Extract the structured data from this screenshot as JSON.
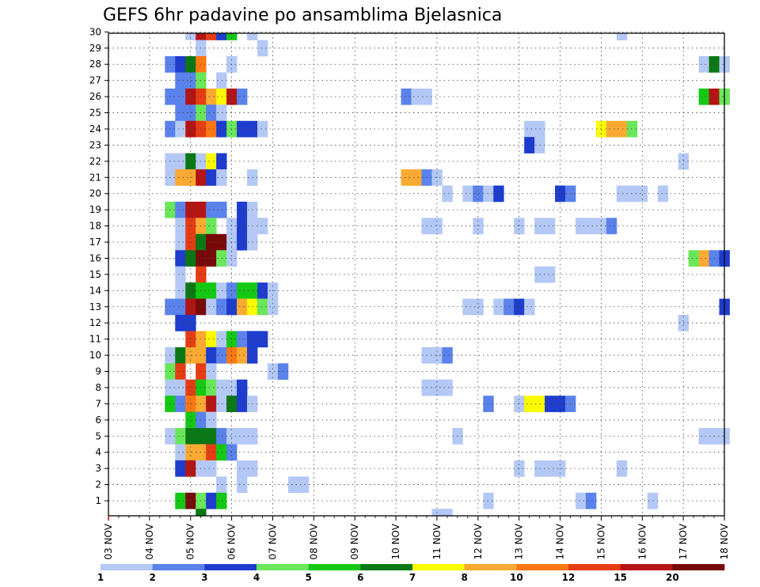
{
  "chart_data": {
    "type": "heatmap",
    "title": "GEFS 6hr padavine po ansamblima Bjelasnica",
    "xlabel": "",
    "ylabel": "",
    "x_labels": [
      "03 NOV",
      "04 NOV",
      "05 NOV",
      "06 NOV",
      "07 NOV",
      "08 NOV",
      "09 NOV",
      "10 NOV",
      "11 NOV",
      "12 NOV",
      "13 NOV",
      "14 NOV",
      "15 NOV",
      "16 NOV",
      "17 NOV",
      "18 NOV"
    ],
    "xlim": [
      0,
      60
    ],
    "y_labels": [
      "1",
      "2",
      "3",
      "4",
      "5",
      "6",
      "7",
      "8",
      "9",
      "10",
      "11",
      "12",
      "13",
      "14",
      "15",
      "16",
      "17",
      "18",
      "19",
      "20",
      "21",
      "22",
      "23",
      "24",
      "25",
      "26",
      "27",
      "28",
      "29",
      "30"
    ],
    "ylim": [
      0,
      30
    ],
    "grid": true,
    "x_unit": "6-hour step from 03 NOV 00Z",
    "color_levels": [
      1,
      2,
      3,
      4,
      5,
      6,
      7,
      8,
      10,
      12,
      15,
      20
    ],
    "colorbar_labels": [
      "1",
      "2",
      "3",
      "4",
      "5",
      "6",
      "7",
      "8",
      "10",
      "12",
      "15",
      "20"
    ],
    "colors": [
      "#b4c8f5",
      "#5a82eb",
      "#1e3ccd",
      "#6ae65a",
      "#14c814",
      "#0a7814",
      "#fafa00",
      "#faaa32",
      "#fa7814",
      "#e63c14",
      "#b41414",
      "#780a0a"
    ],
    "cells": [
      {
        "member": 30,
        "t": [
          [
            8,
            1
          ],
          [
            9,
            11
          ],
          [
            10,
            10
          ],
          [
            11,
            3
          ],
          [
            12,
            5
          ],
          [
            14,
            1
          ],
          [
            50,
            1
          ]
        ]
      },
      {
        "member": 29,
        "t": [
          [
            9,
            1
          ],
          [
            15,
            1
          ]
        ]
      },
      {
        "member": 28,
        "t": [
          [
            6,
            2
          ],
          [
            7,
            3
          ],
          [
            8,
            6
          ],
          [
            9,
            9
          ],
          [
            12,
            1
          ],
          [
            58,
            1
          ],
          [
            59,
            6
          ],
          [
            60,
            1
          ]
        ]
      },
      {
        "member": 27,
        "t": [
          [
            7,
            2
          ],
          [
            8,
            2
          ],
          [
            9,
            4
          ],
          [
            11,
            1
          ]
        ]
      },
      {
        "member": 26,
        "t": [
          [
            6,
            2
          ],
          [
            7,
            2
          ],
          [
            8,
            11
          ],
          [
            9,
            10
          ],
          [
            10,
            8
          ],
          [
            11,
            7
          ],
          [
            12,
            11
          ],
          [
            13,
            2
          ],
          [
            29,
            2
          ],
          [
            30,
            1
          ],
          [
            31,
            1
          ],
          [
            58,
            5
          ],
          [
            59,
            11
          ],
          [
            60,
            4
          ]
        ]
      },
      {
        "member": 25,
        "t": [
          [
            7,
            2
          ],
          [
            8,
            2
          ],
          [
            9,
            4
          ],
          [
            10,
            2
          ],
          [
            11,
            1
          ]
        ]
      },
      {
        "member": 24,
        "t": [
          [
            6,
            2
          ],
          [
            7,
            1
          ],
          [
            8,
            11
          ],
          [
            9,
            10
          ],
          [
            10,
            9
          ],
          [
            11,
            3
          ],
          [
            12,
            4
          ],
          [
            13,
            3
          ],
          [
            14,
            3
          ],
          [
            15,
            1
          ],
          [
            41,
            1
          ],
          [
            42,
            1
          ],
          [
            48,
            7
          ],
          [
            49,
            8
          ],
          [
            50,
            8
          ],
          [
            51,
            4
          ]
        ]
      },
      {
        "member": 23,
        "t": [
          [
            41,
            3
          ],
          [
            42,
            1
          ]
        ]
      },
      {
        "member": 22,
        "t": [
          [
            6,
            1
          ],
          [
            7,
            1
          ],
          [
            8,
            6
          ],
          [
            9,
            1
          ],
          [
            10,
            7
          ],
          [
            11,
            3
          ],
          [
            56,
            1
          ]
        ]
      },
      {
        "member": 21,
        "t": [
          [
            6,
            1
          ],
          [
            7,
            8
          ],
          [
            8,
            8
          ],
          [
            9,
            11
          ],
          [
            10,
            3
          ],
          [
            11,
            1
          ],
          [
            14,
            1
          ],
          [
            29,
            8
          ],
          [
            30,
            8
          ],
          [
            31,
            2
          ],
          [
            32,
            1
          ]
        ]
      },
      {
        "member": 20,
        "t": [
          [
            33,
            1
          ],
          [
            35,
            1
          ],
          [
            36,
            2
          ],
          [
            37,
            1
          ],
          [
            38,
            3
          ],
          [
            44,
            3
          ],
          [
            45,
            2
          ],
          [
            50,
            1
          ],
          [
            51,
            1
          ],
          [
            52,
            1
          ],
          [
            54,
            1
          ]
        ]
      },
      {
        "member": 19,
        "t": [
          [
            6,
            4
          ],
          [
            7,
            2
          ],
          [
            8,
            11
          ],
          [
            9,
            11
          ],
          [
            10,
            2
          ],
          [
            11,
            2
          ],
          [
            13,
            3
          ],
          [
            14,
            1
          ]
        ]
      },
      {
        "member": 18,
        "t": [
          [
            7,
            1
          ],
          [
            8,
            10
          ],
          [
            9,
            8
          ],
          [
            10,
            4
          ],
          [
            12,
            1
          ],
          [
            13,
            3
          ],
          [
            14,
            1
          ],
          [
            15,
            1
          ],
          [
            31,
            1
          ],
          [
            32,
            1
          ],
          [
            36,
            1
          ],
          [
            40,
            1
          ],
          [
            42,
            1
          ],
          [
            43,
            1
          ],
          [
            46,
            1
          ],
          [
            47,
            1
          ],
          [
            48,
            1
          ],
          [
            49,
            2
          ]
        ]
      },
      {
        "member": 17,
        "t": [
          [
            7,
            1
          ],
          [
            8,
            10
          ],
          [
            9,
            6
          ],
          [
            10,
            12
          ],
          [
            11,
            12
          ],
          [
            12,
            1
          ],
          [
            13,
            3
          ],
          [
            14,
            1
          ]
        ]
      },
      {
        "member": 16,
        "t": [
          [
            7,
            3
          ],
          [
            8,
            6
          ],
          [
            9,
            12
          ],
          [
            10,
            12
          ],
          [
            11,
            4
          ],
          [
            12,
            1
          ],
          [
            57,
            4
          ],
          [
            58,
            8
          ],
          [
            59,
            2
          ],
          [
            60,
            3
          ]
        ]
      },
      {
        "member": 15,
        "t": [
          [
            7,
            1
          ],
          [
            9,
            10
          ],
          [
            42,
            1
          ],
          [
            43,
            1
          ]
        ]
      },
      {
        "member": 14,
        "t": [
          [
            7,
            1
          ],
          [
            8,
            6
          ],
          [
            9,
            5
          ],
          [
            10,
            5
          ],
          [
            11,
            1
          ],
          [
            12,
            2
          ],
          [
            13,
            5
          ],
          [
            14,
            5
          ],
          [
            15,
            3
          ],
          [
            16,
            1
          ]
        ]
      },
      {
        "member": 13,
        "t": [
          [
            6,
            2
          ],
          [
            7,
            2
          ],
          [
            8,
            11
          ],
          [
            9,
            12
          ],
          [
            10,
            1
          ],
          [
            11,
            2
          ],
          [
            12,
            3
          ],
          [
            13,
            8
          ],
          [
            14,
            7
          ],
          [
            15,
            4
          ],
          [
            16,
            1
          ],
          [
            35,
            1
          ],
          [
            36,
            1
          ],
          [
            38,
            1
          ],
          [
            39,
            2
          ],
          [
            40,
            3
          ],
          [
            41,
            1
          ],
          [
            60,
            3
          ]
        ]
      },
      {
        "member": 12,
        "t": [
          [
            7,
            3
          ],
          [
            8,
            3
          ],
          [
            56,
            1
          ]
        ]
      },
      {
        "member": 11,
        "t": [
          [
            8,
            10
          ],
          [
            9,
            8
          ],
          [
            10,
            7
          ],
          [
            11,
            1
          ],
          [
            12,
            5
          ],
          [
            13,
            2
          ],
          [
            14,
            3
          ],
          [
            15,
            3
          ]
        ]
      },
      {
        "member": 10,
        "t": [
          [
            6,
            1
          ],
          [
            7,
            6
          ],
          [
            8,
            8
          ],
          [
            9,
            8
          ],
          [
            10,
            3
          ],
          [
            11,
            2
          ],
          [
            12,
            9
          ],
          [
            13,
            8
          ],
          [
            14,
            3
          ],
          [
            31,
            1
          ],
          [
            32,
            1
          ],
          [
            33,
            2
          ]
        ]
      },
      {
        "member": 9,
        "t": [
          [
            6,
            4
          ],
          [
            7,
            10
          ],
          [
            9,
            10
          ],
          [
            10,
            1
          ],
          [
            16,
            1
          ],
          [
            17,
            2
          ]
        ]
      },
      {
        "member": 8,
        "t": [
          [
            6,
            1
          ],
          [
            7,
            1
          ],
          [
            8,
            10
          ],
          [
            9,
            5
          ],
          [
            10,
            4
          ],
          [
            11,
            1
          ],
          [
            12,
            1
          ],
          [
            13,
            3
          ],
          [
            31,
            1
          ],
          [
            32,
            1
          ],
          [
            33,
            1
          ]
        ]
      },
      {
        "member": 7,
        "t": [
          [
            6,
            5
          ],
          [
            7,
            2
          ],
          [
            8,
            9
          ],
          [
            9,
            8
          ],
          [
            10,
            11
          ],
          [
            11,
            1
          ],
          [
            12,
            6
          ],
          [
            13,
            3
          ],
          [
            14,
            1
          ],
          [
            37,
            2
          ],
          [
            40,
            1
          ],
          [
            41,
            7
          ],
          [
            42,
            7
          ],
          [
            43,
            3
          ],
          [
            44,
            3
          ],
          [
            45,
            2
          ]
        ]
      },
      {
        "member": 6,
        "t": [
          [
            8,
            5
          ],
          [
            9,
            2
          ],
          [
            10,
            1
          ]
        ]
      },
      {
        "member": 5,
        "t": [
          [
            6,
            1
          ],
          [
            7,
            4
          ],
          [
            8,
            6
          ],
          [
            9,
            6
          ],
          [
            10,
            6
          ],
          [
            11,
            2
          ],
          [
            12,
            1
          ],
          [
            13,
            1
          ],
          [
            14,
            1
          ],
          [
            34,
            1
          ],
          [
            58,
            1
          ],
          [
            59,
            1
          ],
          [
            60,
            1
          ]
        ]
      },
      {
        "member": 4,
        "t": [
          [
            7,
            1
          ],
          [
            8,
            8
          ],
          [
            9,
            8
          ],
          [
            10,
            10
          ],
          [
            11,
            5
          ],
          [
            12,
            2
          ]
        ]
      },
      {
        "member": 3,
        "t": [
          [
            7,
            3
          ],
          [
            8,
            11
          ],
          [
            9,
            1
          ],
          [
            10,
            1
          ],
          [
            13,
            1
          ],
          [
            14,
            1
          ],
          [
            40,
            1
          ],
          [
            42,
            1
          ],
          [
            43,
            1
          ],
          [
            44,
            1
          ],
          [
            50,
            1
          ]
        ]
      },
      {
        "member": 2,
        "t": [
          [
            11,
            1
          ],
          [
            13,
            1
          ],
          [
            18,
            1
          ],
          [
            19,
            1
          ]
        ]
      },
      {
        "member": 1,
        "t": [
          [
            7,
            5
          ],
          [
            8,
            12
          ],
          [
            9,
            4
          ],
          [
            10,
            3
          ],
          [
            11,
            5
          ],
          [
            37,
            1
          ],
          [
            46,
            1
          ],
          [
            47,
            2
          ],
          [
            53,
            1
          ]
        ]
      },
      {
        "member": 0,
        "t": [
          [
            9,
            6
          ],
          [
            32,
            1
          ],
          [
            33,
            1
          ]
        ]
      }
    ]
  }
}
